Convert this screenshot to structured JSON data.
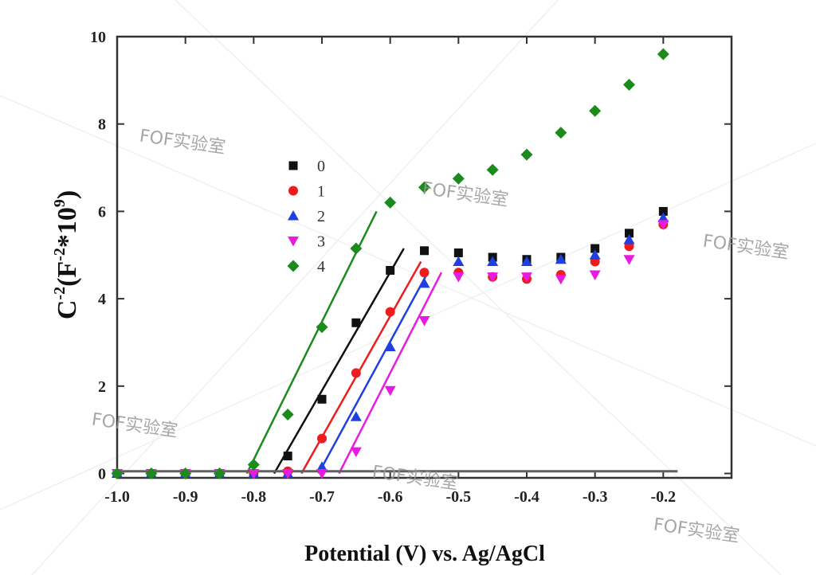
{
  "chart_data": {
    "type": "scatter",
    "title": "",
    "xlabel": "Potential (V) vs. Ag/AgCl",
    "ylabel_base": "C",
    "ylabel_sup1": "-2",
    "ylabel_mid": "(F",
    "ylabel_sup2": "-2",
    "ylabel_mid2": "*10",
    "ylabel_sup3": "9",
    "ylabel_end": ")",
    "xlim": [
      -1.0,
      -0.1
    ],
    "ylim": [
      -0.1,
      10
    ],
    "x_ticks": [
      -1.0,
      -0.9,
      -0.8,
      -0.7,
      -0.6,
      -0.5,
      -0.4,
      -0.3,
      -0.2,
      -0.1
    ],
    "x_tick_labels": [
      "-1.0",
      "-0.9",
      "-0.8",
      "-0.7",
      "-0.6",
      "-0.5",
      "-0.4",
      "-0.3",
      "-0.2",
      ""
    ],
    "y_ticks": [
      0,
      2,
      4,
      6,
      8,
      10
    ],
    "y_tick_labels": [
      "0",
      "2",
      "4",
      "6",
      "8",
      "10"
    ],
    "legend_position": "upper-left",
    "baseline": {
      "y": 0.05,
      "x_range": [
        -1.0,
        -0.2
      ],
      "color": "#606060"
    },
    "series": [
      {
        "name": "0",
        "marker": "square",
        "color": "#111111",
        "points": [
          [
            -1.0,
            0
          ],
          [
            -0.95,
            0
          ],
          [
            -0.9,
            0
          ],
          [
            -0.85,
            0
          ],
          [
            -0.8,
            0
          ],
          [
            -0.75,
            0.4
          ],
          [
            -0.7,
            1.7
          ],
          [
            -0.65,
            3.45
          ],
          [
            -0.6,
            4.65
          ],
          [
            -0.55,
            5.1
          ],
          [
            -0.5,
            5.05
          ],
          [
            -0.45,
            4.95
          ],
          [
            -0.4,
            4.9
          ],
          [
            -0.35,
            4.95
          ],
          [
            -0.3,
            5.15
          ],
          [
            -0.25,
            5.5
          ],
          [
            -0.2,
            6.0
          ]
        ],
        "fit": [
          [
            -0.77,
            0.0
          ],
          [
            -0.58,
            5.15
          ]
        ]
      },
      {
        "name": "1",
        "marker": "circle",
        "color": "#ee1c1c",
        "points": [
          [
            -1.0,
            0
          ],
          [
            -0.95,
            0
          ],
          [
            -0.9,
            0
          ],
          [
            -0.85,
            0
          ],
          [
            -0.8,
            0
          ],
          [
            -0.75,
            0.05
          ],
          [
            -0.7,
            0.8
          ],
          [
            -0.65,
            2.3
          ],
          [
            -0.6,
            3.7
          ],
          [
            -0.55,
            4.6
          ],
          [
            -0.5,
            4.6
          ],
          [
            -0.45,
            4.5
          ],
          [
            -0.4,
            4.45
          ],
          [
            -0.35,
            4.55
          ],
          [
            -0.3,
            4.85
          ],
          [
            -0.25,
            5.2
          ],
          [
            -0.2,
            5.7
          ]
        ],
        "fit": [
          [
            -0.73,
            0.0
          ],
          [
            -0.555,
            4.85
          ]
        ]
      },
      {
        "name": "2",
        "marker": "triangle-up",
        "color": "#1f3fe0",
        "points": [
          [
            -1.0,
            0
          ],
          [
            -0.95,
            0
          ],
          [
            -0.9,
            0
          ],
          [
            -0.85,
            0
          ],
          [
            -0.8,
            0
          ],
          [
            -0.75,
            0
          ],
          [
            -0.7,
            0.15
          ],
          [
            -0.65,
            1.3
          ],
          [
            -0.6,
            2.9
          ],
          [
            -0.55,
            4.35
          ],
          [
            -0.5,
            4.85
          ],
          [
            -0.45,
            4.85
          ],
          [
            -0.4,
            4.85
          ],
          [
            -0.35,
            4.9
          ],
          [
            -0.3,
            5.0
          ],
          [
            -0.25,
            5.35
          ],
          [
            -0.2,
            5.85
          ]
        ],
        "fit": [
          [
            -0.705,
            0.0
          ],
          [
            -0.545,
            4.6
          ]
        ]
      },
      {
        "name": "3",
        "marker": "triangle-down",
        "color": "#e81ce0",
        "points": [
          [
            -1.0,
            0
          ],
          [
            -0.95,
            0
          ],
          [
            -0.9,
            0
          ],
          [
            -0.85,
            0
          ],
          [
            -0.8,
            0
          ],
          [
            -0.75,
            0
          ],
          [
            -0.7,
            0
          ],
          [
            -0.65,
            0.5
          ],
          [
            -0.6,
            1.9
          ],
          [
            -0.55,
            3.5
          ],
          [
            -0.5,
            4.5
          ],
          [
            -0.45,
            4.5
          ],
          [
            -0.4,
            4.5
          ],
          [
            -0.35,
            4.45
          ],
          [
            -0.3,
            4.55
          ],
          [
            -0.25,
            4.9
          ],
          [
            -0.2,
            5.7
          ]
        ],
        "fit": [
          [
            -0.675,
            0.0
          ],
          [
            -0.525,
            4.6
          ]
        ]
      },
      {
        "name": "4",
        "marker": "diamond",
        "color": "#1c8a1c",
        "points": [
          [
            -1.0,
            0
          ],
          [
            -0.95,
            0
          ],
          [
            -0.9,
            0
          ],
          [
            -0.85,
            0
          ],
          [
            -0.8,
            0.2
          ],
          [
            -0.75,
            1.35
          ],
          [
            -0.7,
            3.35
          ],
          [
            -0.65,
            5.15
          ],
          [
            -0.6,
            6.2
          ],
          [
            -0.55,
            6.55
          ],
          [
            -0.5,
            6.75
          ],
          [
            -0.45,
            6.95
          ],
          [
            -0.4,
            7.3
          ],
          [
            -0.35,
            7.8
          ],
          [
            -0.3,
            8.3
          ],
          [
            -0.25,
            8.9
          ],
          [
            -0.2,
            9.6
          ]
        ],
        "fit": [
          [
            -0.81,
            0.0
          ],
          [
            -0.62,
            6.0
          ]
        ]
      }
    ]
  },
  "watermarks": [
    "FOF实验室",
    "FOF实验室",
    "FOF实验室",
    "FOF实验室",
    "FOF实验室",
    "FOF实验室"
  ]
}
